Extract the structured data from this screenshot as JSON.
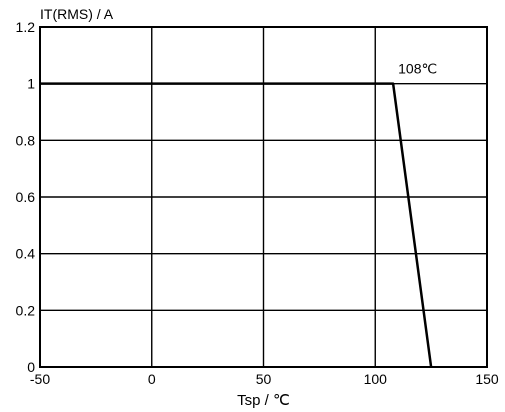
{
  "chart_data": {
    "type": "line",
    "title": "",
    "ylabel": "IT(RMS) / A",
    "xlabel": "Tsp / ℃",
    "xlim": [
      -50,
      150
    ],
    "ylim": [
      0,
      1.2
    ],
    "grid": true,
    "x_ticks": [
      "-50",
      "0",
      "50",
      "100",
      "150"
    ],
    "y_ticks": [
      "0",
      "0.2",
      "0.4",
      "0.6",
      "0.8",
      "1",
      "1.2"
    ],
    "series": [
      {
        "x": [
          -50,
          108,
          125
        ],
        "y": [
          1,
          1,
          0
        ]
      }
    ],
    "annotations": [
      {
        "text": "108℃",
        "x": 108,
        "y": 1
      }
    ],
    "colors": {
      "line": "#000000",
      "grid": "#000000"
    }
  }
}
